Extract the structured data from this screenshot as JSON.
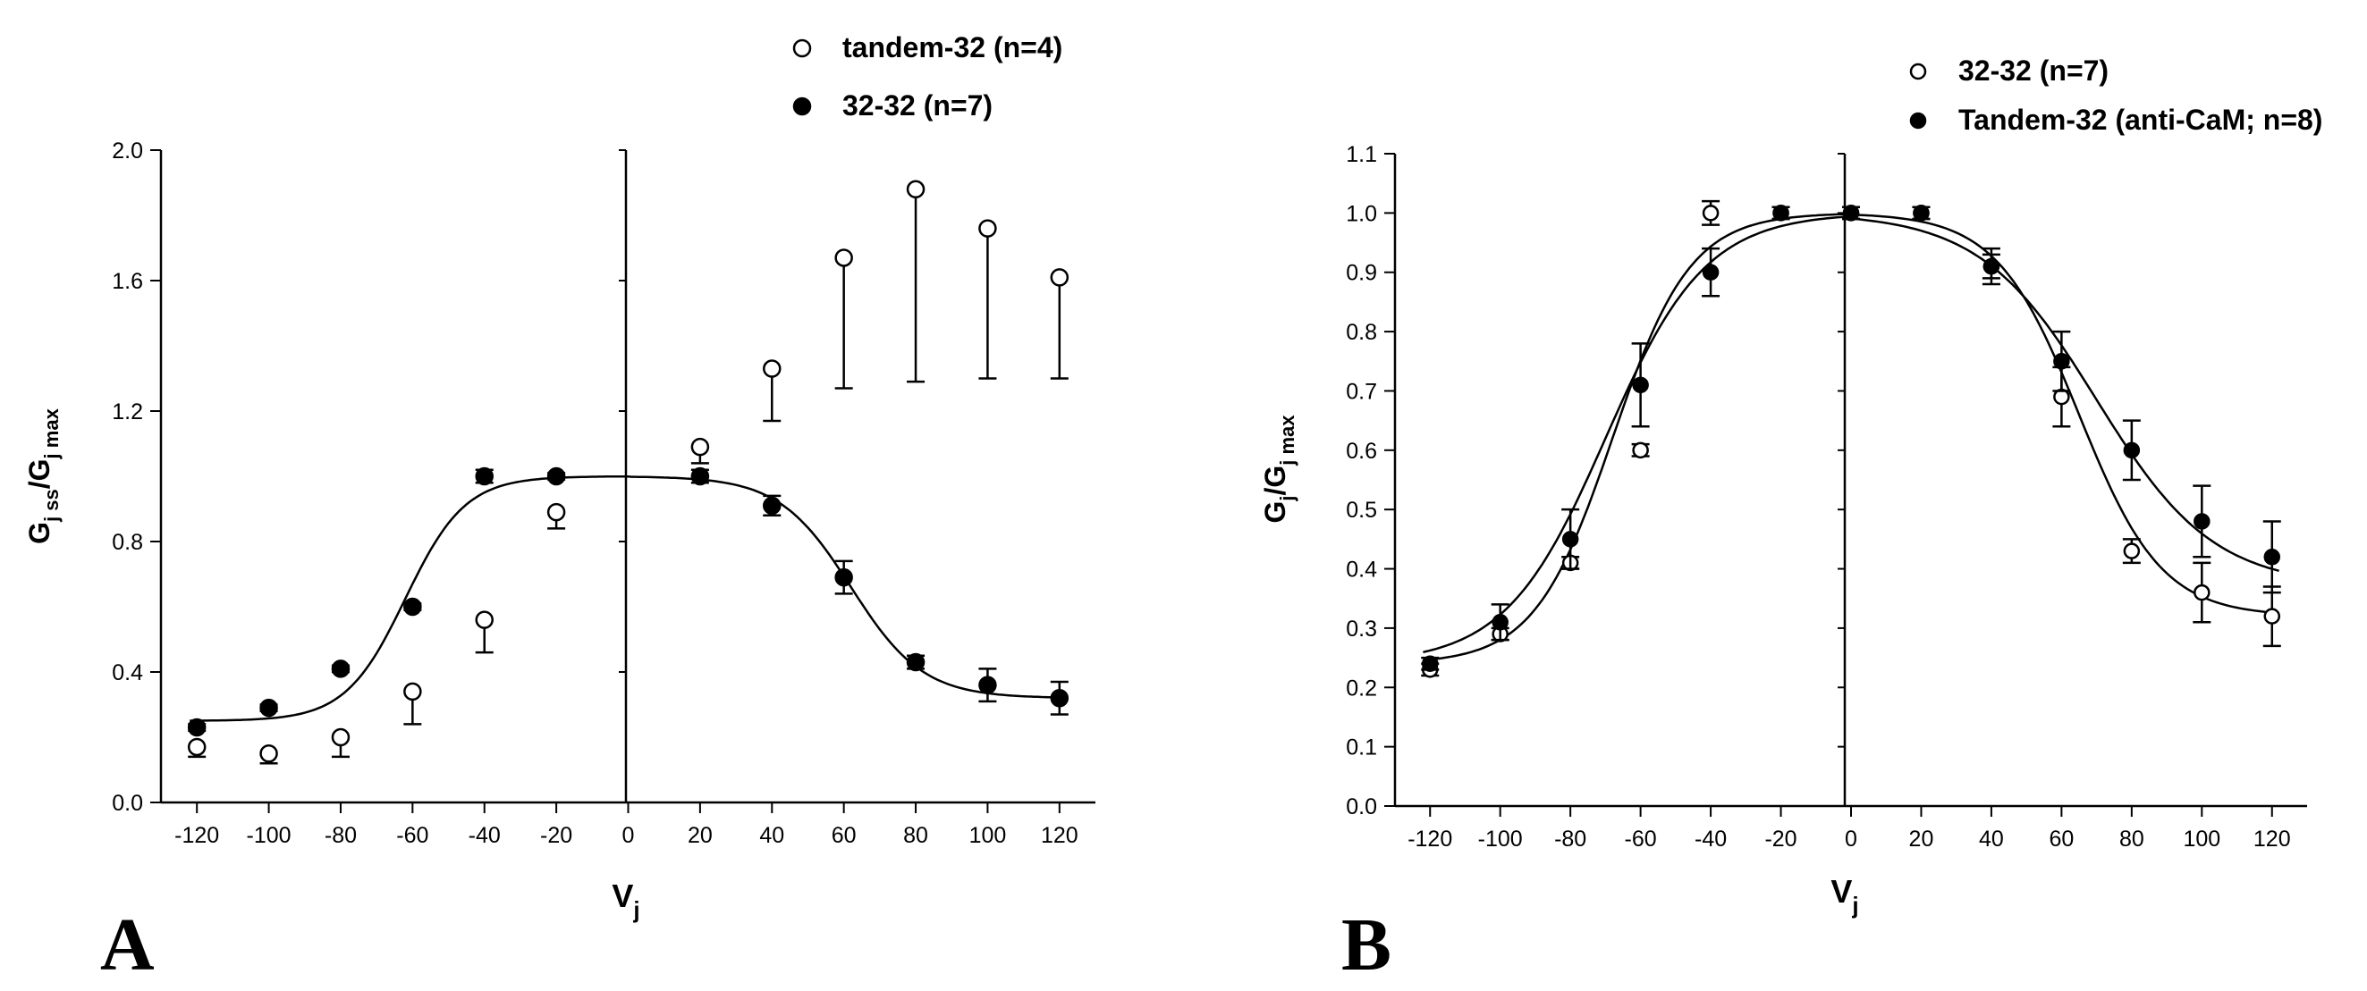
{
  "chart_data": [
    {
      "panel": "A",
      "type": "scatter",
      "xlabel": "V",
      "xlabel_sub": "j",
      "ylabel_main": "G",
      "ylabel_sub1": "j ss",
      "ylabel_mid": "/G",
      "ylabel_sub2": "j max",
      "xlim": [
        -130,
        130
      ],
      "ylim": [
        0,
        2.0
      ],
      "xticks": [
        -120,
        -100,
        -80,
        -60,
        -40,
        -20,
        0,
        20,
        40,
        60,
        80,
        100,
        120
      ],
      "yticks": [
        0.0,
        0.4,
        0.8,
        1.2,
        1.6,
        2.0
      ],
      "ytick_labels": [
        "0.0",
        "0.4",
        "0.8",
        "1.2",
        "1.6",
        "2.0"
      ],
      "legend_position": "top-right",
      "series": [
        {
          "name": "tandem-32 (n=4)",
          "marker": "open-circle",
          "x": [
            -120,
            -100,
            -80,
            -60,
            -40,
            -20,
            20,
            40,
            60,
            80,
            100,
            120
          ],
          "y": [
            0.17,
            0.15,
            0.2,
            0.34,
            0.56,
            0.89,
            1.09,
            1.33,
            1.67,
            1.88,
            1.76,
            1.61
          ],
          "err": [
            0.03,
            0.03,
            0.06,
            0.1,
            0.1,
            0.05,
            0.05,
            0.16,
            0.4,
            0.59,
            0.46,
            0.31
          ]
        },
        {
          "name": "32-32 (n=7)",
          "marker": "filled-circle",
          "x": [
            -120,
            -100,
            -80,
            -60,
            -40,
            -20,
            20,
            40,
            60,
            80,
            100,
            120
          ],
          "y": [
            0.23,
            0.29,
            0.41,
            0.6,
            1.0,
            1.0,
            1.0,
            0.91,
            0.69,
            0.43,
            0.36,
            0.32
          ],
          "err": [
            0.01,
            0.01,
            0.01,
            0.01,
            0.02,
            0.01,
            0.02,
            0.03,
            0.05,
            0.02,
            0.05,
            0.05
          ],
          "fit": {
            "left": {
              "gmin": 0.25,
              "v0": -62,
              "a": 0.12
            },
            "right": {
              "gmin": 0.32,
              "v0": 62,
              "a": 0.1
            }
          }
        }
      ]
    },
    {
      "panel": "B",
      "type": "scatter",
      "xlabel": "V",
      "xlabel_sub": "j",
      "ylabel_main": "G",
      "ylabel_sub1": "j",
      "ylabel_mid": "/G",
      "ylabel_sub2": "j max",
      "xlim": [
        -130,
        130
      ],
      "ylim": [
        0,
        1.1
      ],
      "xticks": [
        -120,
        -100,
        -80,
        -60,
        -40,
        -20,
        0,
        20,
        40,
        60,
        80,
        100,
        120
      ],
      "yticks": [
        0.0,
        0.1,
        0.2,
        0.3,
        0.4,
        0.5,
        0.6,
        0.7,
        0.8,
        0.9,
        1.0,
        1.1
      ],
      "ytick_labels": [
        "0.0",
        "0.1",
        "0.2",
        "0.3",
        "0.4",
        "0.5",
        "0.6",
        "0.7",
        "0.8",
        "0.9",
        "1.0",
        "1.1"
      ],
      "legend_position": "top-right",
      "series": [
        {
          "name": "32-32 (n=7)",
          "marker": "open-circle",
          "x": [
            -120,
            -100,
            -80,
            -60,
            -40,
            -20,
            0,
            20,
            40,
            60,
            80,
            100,
            120
          ],
          "y": [
            0.23,
            0.29,
            0.41,
            0.6,
            1.0,
            1.0,
            1.0,
            1.0,
            0.91,
            0.69,
            0.43,
            0.36,
            0.32
          ],
          "err": [
            0.01,
            0.01,
            0.01,
            0.01,
            0.02,
            0.01,
            0.01,
            0.01,
            0.03,
            0.05,
            0.02,
            0.05,
            0.05
          ],
          "fit": {
            "left": {
              "gmin": 0.24,
              "v0": -68,
              "a": 0.09
            },
            "right": {
              "gmin": 0.32,
              "v0": 65,
              "a": 0.085
            }
          }
        },
        {
          "name": "Tandem-32 (anti-CaM; n=8)",
          "marker": "filled-circle",
          "x": [
            -120,
            -100,
            -80,
            -60,
            -40,
            -20,
            0,
            20,
            40,
            60,
            80,
            100,
            120
          ],
          "y": [
            0.24,
            0.31,
            0.45,
            0.71,
            0.9,
            1.0,
            1.0,
            1.0,
            0.91,
            0.75,
            0.6,
            0.48,
            0.42
          ],
          "err": [
            0.01,
            0.03,
            0.05,
            0.07,
            0.04,
            0.01,
            0.01,
            0.01,
            0.02,
            0.05,
            0.05,
            0.06,
            0.06
          ],
          "fit": {
            "left": {
              "gmin": 0.24,
              "v0": -70,
              "a": 0.07
            },
            "right": {
              "gmin": 0.37,
              "v0": 70,
              "a": 0.06
            }
          }
        }
      ]
    }
  ]
}
